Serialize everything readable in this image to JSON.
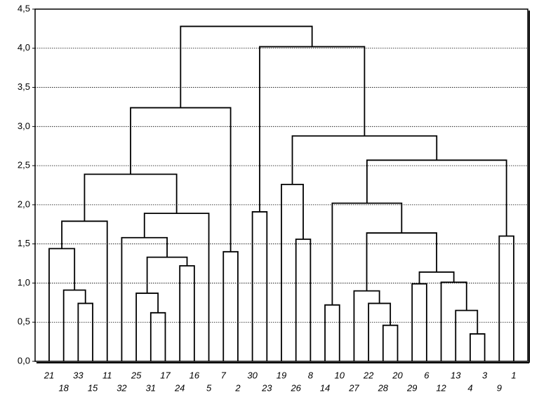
{
  "chart_data": {
    "type": "dendrogram",
    "leaves": [
      "21",
      "18",
      "33",
      "15",
      "11",
      "32",
      "25",
      "31",
      "17",
      "24",
      "16",
      "5",
      "7",
      "2",
      "30",
      "23",
      "19",
      "26",
      "8",
      "14",
      "10",
      "27",
      "22",
      "28",
      "20",
      "29",
      "6",
      "12",
      "13",
      "4",
      "3",
      "9",
      "1"
    ],
    "merges": [
      {
        "children": [
          2,
          3
        ],
        "height": 0.74
      },
      {
        "children": [
          1,
          33
        ],
        "height": 0.91
      },
      {
        "children": [
          0,
          34
        ],
        "height": 1.44
      },
      {
        "children": [
          35,
          4
        ],
        "height": 1.79
      },
      {
        "children": [
          7,
          8
        ],
        "height": 0.62
      },
      {
        "children": [
          6,
          37
        ],
        "height": 0.87
      },
      {
        "children": [
          9,
          10
        ],
        "height": 1.22
      },
      {
        "children": [
          38,
          39
        ],
        "height": 1.33
      },
      {
        "children": [
          5,
          40
        ],
        "height": 1.58
      },
      {
        "children": [
          41,
          11
        ],
        "height": 1.89
      },
      {
        "children": [
          36,
          42
        ],
        "height": 2.39
      },
      {
        "children": [
          12,
          13
        ],
        "height": 1.4
      },
      {
        "children": [
          43,
          44
        ],
        "height": 3.24
      },
      {
        "children": [
          14,
          15
        ],
        "height": 1.91
      },
      {
        "children": [
          17,
          18
        ],
        "height": 1.56
      },
      {
        "children": [
          16,
          47
        ],
        "height": 2.26
      },
      {
        "children": [
          19,
          20
        ],
        "height": 0.72
      },
      {
        "children": [
          23,
          24
        ],
        "height": 0.46
      },
      {
        "children": [
          22,
          50
        ],
        "height": 0.74
      },
      {
        "children": [
          21,
          51
        ],
        "height": 0.9
      },
      {
        "children": [
          25,
          26
        ],
        "height": 0.99
      },
      {
        "children": [
          29,
          30
        ],
        "height": 0.35
      },
      {
        "children": [
          28,
          54
        ],
        "height": 0.65
      },
      {
        "children": [
          27,
          55
        ],
        "height": 1.01
      },
      {
        "children": [
          53,
          56
        ],
        "height": 1.14
      },
      {
        "children": [
          52,
          57
        ],
        "height": 1.64
      },
      {
        "children": [
          49,
          58
        ],
        "height": 2.02
      },
      {
        "children": [
          31,
          32
        ],
        "height": 1.6
      },
      {
        "children": [
          59,
          60
        ],
        "height": 2.57
      },
      {
        "children": [
          48,
          61
        ],
        "height": 2.88
      },
      {
        "children": [
          46,
          62
        ],
        "height": 4.02
      },
      {
        "children": [
          45,
          63
        ],
        "height": 4.28
      }
    ],
    "ylim": [
      0,
      4.5
    ],
    "yticks": [
      {
        "value": 0,
        "label": "0,0"
      },
      {
        "value": 0.5,
        "label": "0,5"
      },
      {
        "value": 1,
        "label": "1,0"
      },
      {
        "value": 1.5,
        "label": "1,5"
      },
      {
        "value": 2,
        "label": "2,0"
      },
      {
        "value": 2.5,
        "label": "2,5"
      },
      {
        "value": 3,
        "label": "3,0"
      },
      {
        "value": 3.5,
        "label": "3,5"
      },
      {
        "value": 4,
        "label": "4,0"
      },
      {
        "value": 4.5,
        "label": "4,5"
      }
    ],
    "grid": true,
    "color": "#000000"
  }
}
